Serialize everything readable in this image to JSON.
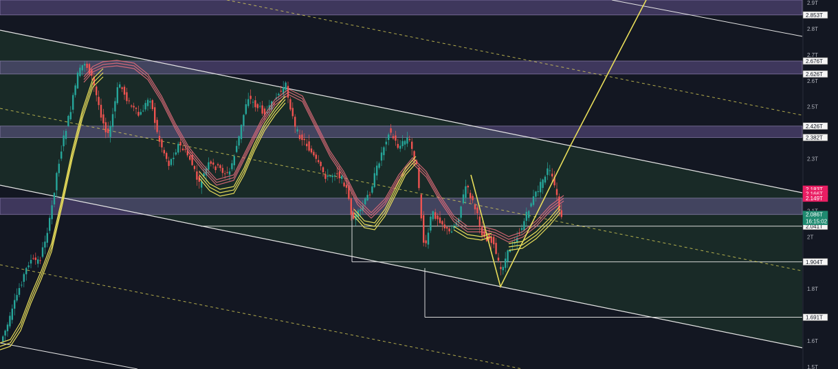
{
  "chart_data": {
    "type": "candlestick",
    "title": "",
    "xlabel": "",
    "ylabel": "",
    "ylim": [
      1.5,
      2.92
    ],
    "log_scale": false,
    "grid": false,
    "y_ticks": [
      "2.9T",
      "2.8T",
      "2.7T",
      "2.6T",
      "2.5T",
      "2.3T",
      "2.1T",
      "2T",
      "1.8T",
      "1.6T",
      "1.5T"
    ],
    "tick_values": [
      2.9,
      2.8,
      2.7,
      2.6,
      2.5,
      2.3,
      2.1,
      2.0,
      1.8,
      1.6,
      1.5
    ],
    "zones": [
      {
        "from": 2.853,
        "to": 2.92
      },
      {
        "from": 2.626,
        "to": 2.676
      },
      {
        "from": 2.382,
        "to": 2.426
      },
      {
        "from": 2.086,
        "to": 2.149
      }
    ],
    "levels": [
      {
        "label": "2.853T",
        "value": 2.853
      },
      {
        "label": "2.676T",
        "value": 2.676
      },
      {
        "label": "2.626T",
        "value": 2.626
      },
      {
        "label": "2.426T",
        "value": 2.426
      },
      {
        "label": "2.382T",
        "value": 2.382
      },
      {
        "label": "2.041T",
        "value": 2.041
      },
      {
        "label": "1.904T",
        "value": 1.904
      },
      {
        "label": "1.691T",
        "value": 1.691
      }
    ],
    "current_price": {
      "label": "2.086T",
      "countdown": "16:15:02",
      "value": 2.086
    },
    "ma_labels": [
      {
        "label": "2.183T",
        "value": 2.183
      },
      {
        "label": "2.166T",
        "value": 2.166
      },
      {
        "label": "2.149T",
        "value": 2.149
      }
    ],
    "colors": {
      "background": "#131722",
      "up": "#26a69a",
      "down": "#ef5350",
      "zone": "#9c7bd6",
      "channel": "#2e4a3a",
      "yellow": "#e8dd5a",
      "red_ma": "#e06c7a",
      "axis_text": "#b2b5be"
    }
  }
}
